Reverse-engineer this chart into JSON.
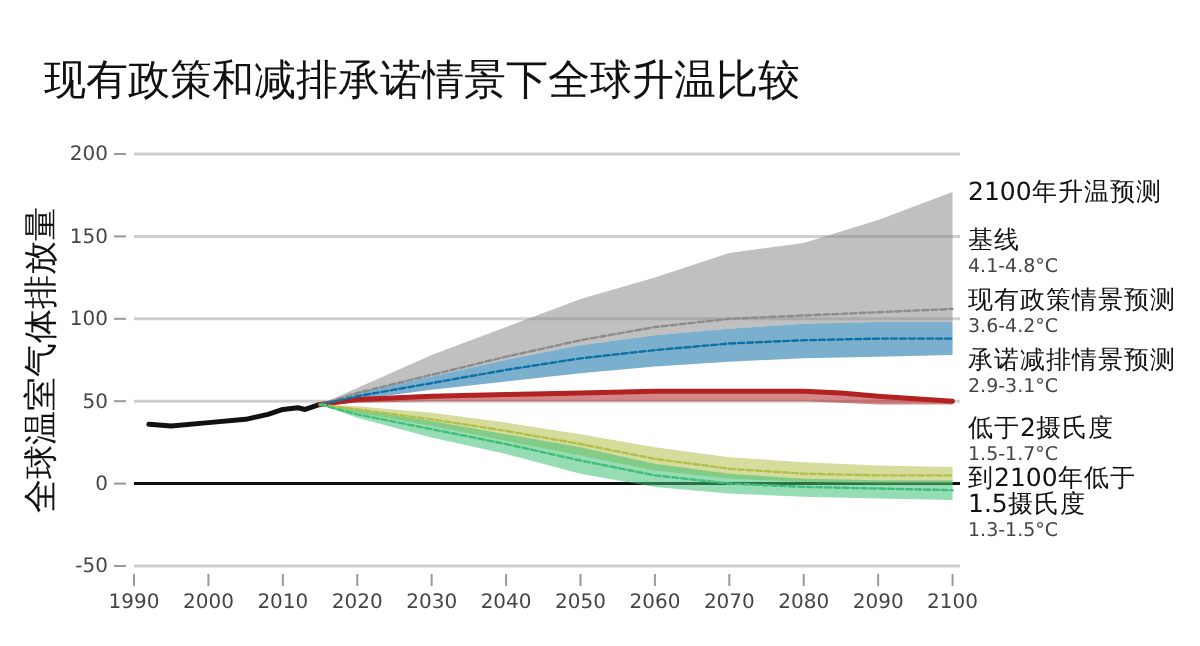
{
  "chart_data": {
    "type": "line",
    "title": "现有政策和减排承诺情景下全球升温比较",
    "ylabel": "全球温室气体排放量",
    "legend_title": "2100年升温预测",
    "xlim": [
      1990,
      2101
    ],
    "ylim": [
      -50,
      200
    ],
    "xticks": [
      1990,
      2000,
      2010,
      2020,
      2030,
      2040,
      2050,
      2060,
      2070,
      2080,
      2090,
      2100
    ],
    "yticks": [
      -50,
      0,
      50,
      100,
      150,
      200
    ],
    "grid": "y",
    "legend": "right",
    "ref_lines": [
      {
        "axis": "y",
        "value": 0,
        "color": "#111111"
      }
    ],
    "series": [
      {
        "color": "#111111",
        "line_style": "solid",
        "x": [
          1992,
          1995,
          2000,
          2005,
          2008,
          2010,
          2012,
          2013,
          2015
        ],
        "values": [
          36,
          35,
          37,
          39,
          42,
          45,
          46,
          45,
          48
        ]
      },
      {
        "name": "基线",
        "color": "#8c8c8c",
        "line_style": "dashed",
        "x": [
          2015,
          2020,
          2030,
          2040,
          2050,
          2060,
          2070,
          2080,
          2090,
          2100
        ],
        "values": [
          48,
          55,
          66,
          77,
          87,
          95,
          100,
          102,
          104,
          106
        ],
        "lower": [
          48,
          55,
          65,
          75,
          84,
          90,
          94,
          97,
          98,
          98
        ],
        "upper": [
          48,
          58,
          78,
          95,
          112,
          125,
          140,
          146,
          160,
          177
        ]
      },
      {
        "name": "现有政策情景预测",
        "color": "#0d6fa6",
        "line_style": "dashed",
        "x": [
          2015,
          2020,
          2030,
          2040,
          2050,
          2060,
          2070,
          2080,
          2090,
          2100
        ],
        "values": [
          48,
          53,
          61,
          69,
          76,
          81,
          85,
          87,
          88,
          88
        ],
        "lower": [
          48,
          51,
          57,
          62,
          67,
          71,
          74,
          76,
          77,
          78
        ],
        "upper": [
          48,
          55,
          65,
          75,
          84,
          90,
          94,
          97,
          98,
          98
        ]
      },
      {
        "name": "承诺减排情景预测",
        "color": "#b22222",
        "line_style": "solid",
        "x": [
          2015,
          2020,
          2030,
          2040,
          2050,
          2060,
          2070,
          2080,
          2085,
          2090,
          2100
        ],
        "values": [
          48,
          51,
          53,
          54,
          55,
          56,
          56,
          56,
          55,
          53,
          50
        ],
        "lower": [
          48,
          49,
          50,
          50,
          50,
          50,
          50,
          50,
          49,
          48,
          48
        ],
        "upper": [
          48,
          51,
          53,
          54,
          55,
          56,
          56,
          56,
          55,
          53,
          50
        ]
      },
      {
        "name": "低于2摄氏度",
        "color": "#b4bf4a",
        "line_style": "dashed",
        "x": [
          2015,
          2020,
          2030,
          2040,
          2050,
          2060,
          2070,
          2080,
          2090,
          2100
        ],
        "values": [
          48,
          45,
          39,
          32,
          24,
          15,
          9,
          6,
          5,
          5
        ],
        "lower": [
          48,
          43,
          35,
          26,
          17,
          8,
          3,
          1,
          0,
          0
        ],
        "upper": [
          48,
          47,
          43,
          37,
          30,
          22,
          16,
          13,
          11,
          10
        ]
      },
      {
        "name": "到2100年低于1.5摄氏度",
        "color": "#3fbf78",
        "line_style": "dashed",
        "x": [
          2015,
          2020,
          2030,
          2040,
          2050,
          2060,
          2070,
          2080,
          2090,
          2100
        ],
        "values": [
          48,
          42,
          33,
          24,
          14,
          5,
          0,
          -2,
          -3,
          -4
        ],
        "lower": [
          48,
          40,
          28,
          18,
          6,
          -2,
          -6,
          -8,
          -9,
          -10
        ],
        "upper": [
          48,
          45,
          38,
          30,
          22,
          12,
          6,
          3,
          2,
          2
        ]
      }
    ],
    "annotations": [
      "4.1-4.8°C",
      "3.6-4.2°C",
      "2.9-3.1°C",
      "1.5-1.7°C",
      "1.3-1.5°C"
    ]
  }
}
